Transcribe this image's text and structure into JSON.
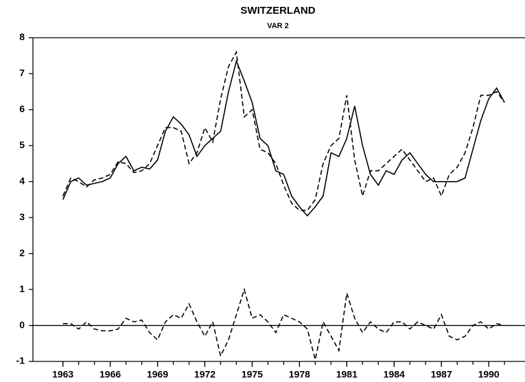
{
  "chart_data": {
    "type": "line",
    "title": "SWITZERLAND",
    "subtitle": "VAR 2",
    "x": [
      1963,
      1963.5,
      1964,
      1964.5,
      1965,
      1965.5,
      1966,
      1966.5,
      1967,
      1967.5,
      1968,
      1968.5,
      1969,
      1969.5,
      1970,
      1970.5,
      1971,
      1971.5,
      1972,
      1972.5,
      1973,
      1973.5,
      1974,
      1974.5,
      1975,
      1975.5,
      1976,
      1976.5,
      1977,
      1977.5,
      1978,
      1978.5,
      1979,
      1979.5,
      1980,
      1980.5,
      1981,
      1981.5,
      1982,
      1982.5,
      1983,
      1983.5,
      1984,
      1984.5,
      1985,
      1985.5,
      1986,
      1986.5,
      1987,
      1987.5,
      1988,
      1988.5,
      1989,
      1989.5,
      1990,
      1990.5,
      1991
    ],
    "series": [
      {
        "color": "#000000",
        "dash": "solid",
        "values": [
          3.5,
          4.0,
          4.1,
          3.9,
          3.95,
          4.0,
          4.1,
          4.5,
          4.7,
          4.3,
          4.4,
          4.35,
          4.6,
          5.4,
          5.8,
          5.6,
          5.3,
          4.7,
          5.0,
          5.2,
          5.4,
          6.5,
          7.35,
          6.8,
          6.2,
          5.2,
          5.0,
          4.3,
          4.2,
          3.6,
          3.3,
          3.05,
          3.3,
          3.6,
          4.8,
          4.7,
          5.2,
          6.1,
          5.0,
          4.2,
          3.9,
          4.3,
          4.2,
          4.6,
          4.8,
          4.5,
          4.2,
          4.0,
          4.0,
          4.0,
          4.0,
          4.1,
          4.9,
          5.7,
          6.3,
          6.6,
          6.2
        ]
      },
      {
        "color": "#000000",
        "dash": "dashed",
        "values": [
          3.6,
          4.1,
          4.0,
          3.85,
          4.05,
          4.1,
          4.2,
          4.55,
          4.5,
          4.25,
          4.3,
          4.5,
          5.0,
          5.5,
          5.5,
          5.4,
          4.5,
          4.8,
          5.5,
          5.1,
          6.3,
          7.2,
          7.6,
          5.8,
          6.0,
          4.9,
          4.8,
          4.5,
          3.9,
          3.4,
          3.2,
          3.2,
          3.5,
          4.5,
          5.0,
          5.2,
          6.4,
          4.6,
          3.6,
          4.3,
          4.3,
          4.5,
          4.7,
          4.9,
          4.6,
          4.3,
          4.0,
          4.1,
          3.6,
          4.2,
          4.4,
          4.8,
          5.5,
          6.4,
          6.4,
          6.5,
          6.2
        ]
      },
      {
        "color": "#000000",
        "dash": "dashed",
        "values": [
          0.05,
          0.05,
          -0.1,
          0.1,
          -0.1,
          -0.15,
          -0.15,
          -0.1,
          0.2,
          0.1,
          0.15,
          -0.2,
          -0.4,
          0.1,
          0.3,
          0.2,
          0.6,
          0.1,
          -0.3,
          0.1,
          -0.85,
          -0.4,
          0.3,
          1.0,
          0.2,
          0.3,
          0.1,
          -0.2,
          0.3,
          0.2,
          0.1,
          -0.1,
          -0.95,
          0.1,
          -0.3,
          -0.7,
          0.9,
          0.2,
          -0.2,
          0.1,
          -0.1,
          -0.2,
          0.1,
          0.1,
          -0.1,
          0.1,
          0.0,
          -0.1,
          0.3,
          -0.3,
          -0.4,
          -0.3,
          0.0,
          0.1,
          -0.1,
          0.05,
          0.0
        ]
      }
    ],
    "xlim": [
      1961.1,
      1992.3
    ],
    "xticks": [
      1963,
      1966,
      1969,
      1972,
      1975,
      1978,
      1981,
      1984,
      1987,
      1990
    ],
    "xminorticks": [
      1963,
      1964,
      1965,
      1966,
      1967,
      1968,
      1969,
      1970,
      1971,
      1972,
      1973,
      1974,
      1975,
      1976,
      1977,
      1978,
      1979,
      1980,
      1981,
      1982,
      1983,
      1984,
      1985,
      1986,
      1987,
      1988,
      1989,
      1990,
      1991
    ],
    "ylim": [
      -1,
      8
    ],
    "yticks": [
      -1,
      0,
      1,
      2,
      3,
      4,
      5,
      6,
      7,
      8
    ],
    "zero_line": true,
    "grid": false
  }
}
